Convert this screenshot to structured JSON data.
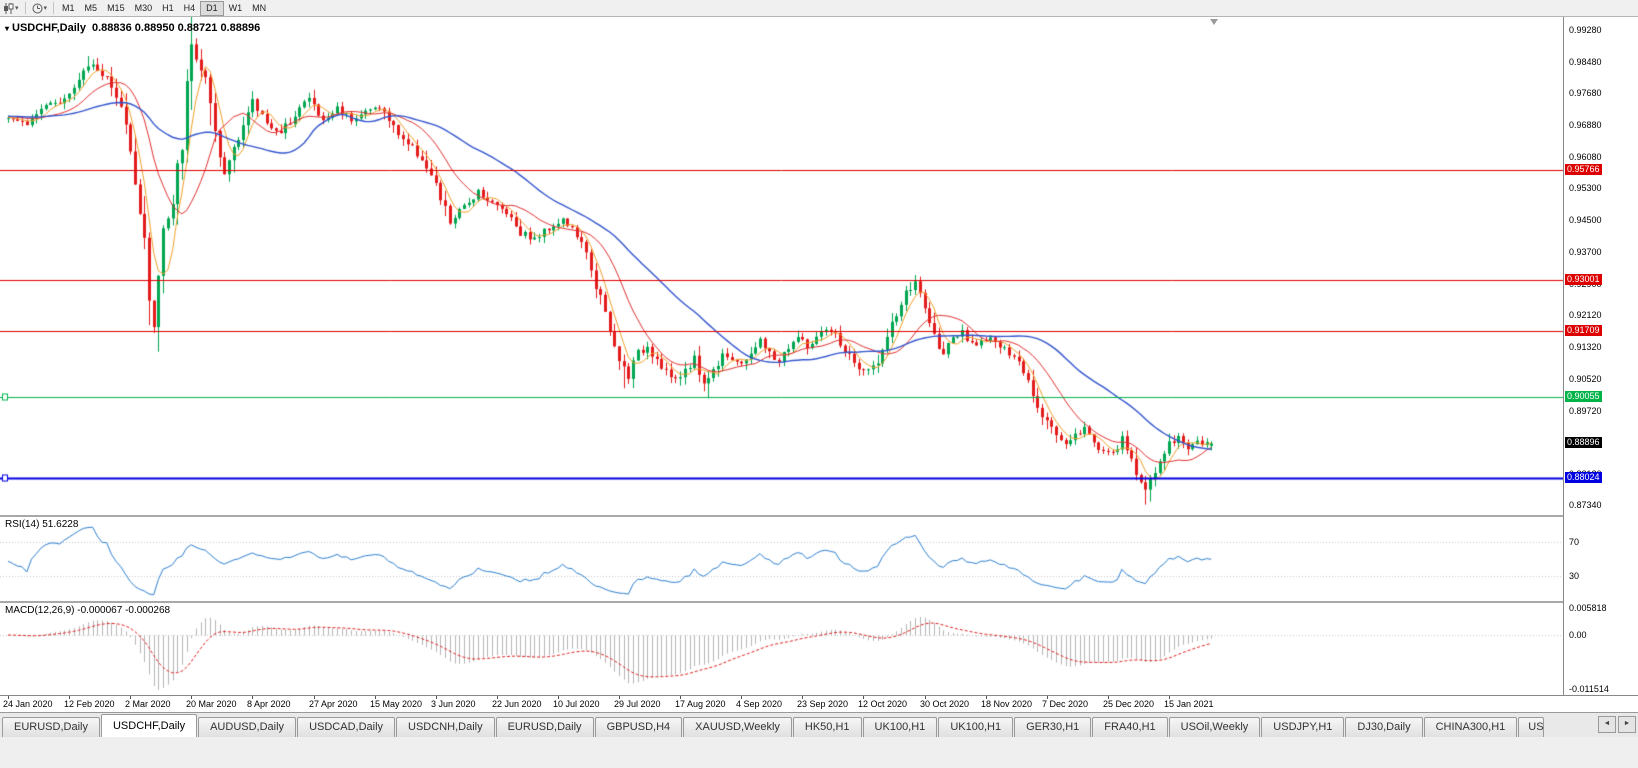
{
  "toolbar": {
    "timeframes": [
      "M1",
      "M5",
      "M15",
      "M30",
      "H1",
      "H4",
      "D1",
      "W1",
      "MN"
    ],
    "active_timeframe": "D1"
  },
  "chart": {
    "symbol_title": "USDCHF,Daily",
    "ohlc_line": "0.88836 0.88950 0.88721 0.88896",
    "dropdown_glyph": "▾"
  },
  "rsi_panel": {
    "label": "RSI(14)",
    "value": "51.6228"
  },
  "macd_panel": {
    "label": "MACD(12,26,9)",
    "values": "-0.000067 -0.000268"
  },
  "chart_data": {
    "type": "candlestick",
    "title": "USDCHF,Daily",
    "symbol": "USDCHF",
    "timeframe": "Daily",
    "grid": false,
    "legend": false,
    "last_open": 0.88836,
    "last_high": 0.8895,
    "last_low": 0.88721,
    "last_close": 0.88896,
    "current_price": 0.88896,
    "bar_count": 257,
    "bars_per_tick": 13,
    "seed": 1337,
    "x_ticks": [
      "24 Jan 2020",
      "12 Feb 2020",
      "2 Mar 2020",
      "20 Mar 2020",
      "8 Apr 2020",
      "27 Apr 2020",
      "15 May 2020",
      "3 Jun 2020",
      "22 Jun 2020",
      "10 Jul 2020",
      "29 Jul 2020",
      "17 Aug 2020",
      "4 Sep 2020",
      "23 Sep 2020",
      "12 Oct 2020",
      "30 Oct 2020",
      "18 Nov 2020",
      "7 Dec 2020",
      "25 Dec 2020",
      "15 Jan 2021"
    ],
    "y_axis": {
      "max": 0.996,
      "min": 0.871,
      "ticks": [
        0.9928,
        0.9848,
        0.9768,
        0.9688,
        0.9608,
        0.953,
        0.945,
        0.937,
        0.929,
        0.9212,
        0.9132,
        0.9052,
        0.8972,
        0.8892,
        0.8812,
        0.8734
      ]
    },
    "levels": [
      {
        "value": 0.95766,
        "color": "#dd0000",
        "line_width": 1,
        "handles": false
      },
      {
        "value": 0.93001,
        "color": "#dd0000",
        "line_width": 1,
        "handles": false
      },
      {
        "value": 0.91709,
        "color": "#dd0000",
        "line_width": 1,
        "handles": false
      },
      {
        "value": 0.90055,
        "color": "#00b44a",
        "line_width": 1,
        "handles": true
      },
      {
        "value": 0.88024,
        "color": "#0000e0",
        "line_width": 2,
        "handles": true
      }
    ],
    "moving_averages": [
      {
        "period": 5,
        "color": "#f0a02a",
        "width": 1
      },
      {
        "period": 13,
        "color": "#e03030",
        "width": 1
      },
      {
        "period": 34,
        "color": "#3355cc",
        "width": 1.4
      }
    ],
    "rsi": {
      "period": 14,
      "color": "#2e7fd0",
      "levels": [
        70,
        30
      ],
      "range": [
        0,
        100
      ]
    },
    "macd": {
      "fast": 12,
      "slow": 26,
      "signal": 9,
      "hist_color": "#b4b4b4",
      "signal_color": "#e02020",
      "range": {
        "max": 0.0068,
        "min": -0.0128
      },
      "ticks": [
        {
          "v": 0.005818,
          "t": "0.005818"
        },
        {
          "v": 0,
          "t": "0.00"
        },
        {
          "v": -0.011514,
          "t": "-0.011514"
        }
      ]
    },
    "colors": {
      "up": "#00a650",
      "down": "#e31b1b"
    },
    "price_anchors": [
      [
        0,
        0.9712
      ],
      [
        4,
        0.9692
      ],
      [
        7,
        0.973
      ],
      [
        10,
        0.9742
      ],
      [
        13,
        0.9772
      ],
      [
        16,
        0.9832
      ],
      [
        18,
        0.9845
      ],
      [
        21,
        0.9806
      ],
      [
        24,
        0.9732
      ],
      [
        26,
        0.9642
      ],
      [
        28,
        0.9482
      ],
      [
        30,
        0.9272
      ],
      [
        31,
        0.9196
      ],
      [
        33,
        0.942
      ],
      [
        35,
        0.9482
      ],
      [
        37,
        0.9652
      ],
      [
        39,
        0.9878
      ],
      [
        40,
        0.9858
      ],
      [
        42,
        0.98
      ],
      [
        44,
        0.9642
      ],
      [
        46,
        0.9562
      ],
      [
        48,
        0.964
      ],
      [
        50,
        0.9692
      ],
      [
        52,
        0.9742
      ],
      [
        55,
        0.97
      ],
      [
        58,
        0.9662
      ],
      [
        61,
        0.9722
      ],
      [
        64,
        0.9756
      ],
      [
        67,
        0.9696
      ],
      [
        70,
        0.9732
      ],
      [
        73,
        0.9706
      ],
      [
        76,
        0.9722
      ],
      [
        79,
        0.9736
      ],
      [
        82,
        0.9682
      ],
      [
        85,
        0.9642
      ],
      [
        88,
        0.9606
      ],
      [
        91,
        0.9532
      ],
      [
        94,
        0.9446
      ],
      [
        97,
        0.9482
      ],
      [
        100,
        0.9526
      ],
      [
        103,
        0.9492
      ],
      [
        106,
        0.9472
      ],
      [
        109,
        0.9422
      ],
      [
        112,
        0.9402
      ],
      [
        115,
        0.9432
      ],
      [
        118,
        0.9452
      ],
      [
        121,
        0.9412
      ],
      [
        124,
        0.9332
      ],
      [
        126,
        0.9252
      ],
      [
        128,
        0.9162
      ],
      [
        130,
        0.9096
      ],
      [
        132,
        0.9062
      ],
      [
        134,
        0.9112
      ],
      [
        136,
        0.9136
      ],
      [
        138,
        0.9102
      ],
      [
        140,
        0.9072
      ],
      [
        142,
        0.9042
      ],
      [
        144,
        0.9076
      ],
      [
        146,
        0.9102
      ],
      [
        148,
        0.9042
      ],
      [
        150,
        0.9072
      ],
      [
        152,
        0.9122
      ],
      [
        154,
        0.9102
      ],
      [
        156,
        0.9082
      ],
      [
        158,
        0.9122
      ],
      [
        160,
        0.9146
      ],
      [
        162,
        0.9112
      ],
      [
        164,
        0.9096
      ],
      [
        166,
        0.9132
      ],
      [
        168,
        0.9156
      ],
      [
        170,
        0.9132
      ],
      [
        172,
        0.9152
      ],
      [
        174,
        0.9172
      ],
      [
        176,
        0.9162
      ],
      [
        178,
        0.9122
      ],
      [
        180,
        0.9092
      ],
      [
        182,
        0.9066
      ],
      [
        184,
        0.9082
      ],
      [
        186,
        0.9122
      ],
      [
        188,
        0.9182
      ],
      [
        190,
        0.9242
      ],
      [
        192,
        0.9282
      ],
      [
        193,
        0.9292
      ],
      [
        195,
        0.9232
      ],
      [
        197,
        0.9152
      ],
      [
        199,
        0.9122
      ],
      [
        201,
        0.9146
      ],
      [
        203,
        0.9166
      ],
      [
        205,
        0.9132
      ],
      [
        207,
        0.9152
      ],
      [
        209,
        0.9156
      ],
      [
        211,
        0.9132
      ],
      [
        213,
        0.9112
      ],
      [
        215,
        0.9092
      ],
      [
        217,
        0.9052
      ],
      [
        219,
        0.8992
      ],
      [
        221,
        0.8946
      ],
      [
        223,
        0.8912
      ],
      [
        225,
        0.8892
      ],
      [
        227,
        0.8912
      ],
      [
        229,
        0.8926
      ],
      [
        231,
        0.8892
      ],
      [
        233,
        0.8872
      ],
      [
        235,
        0.8862
      ],
      [
        237,
        0.8896
      ],
      [
        239,
        0.8852
      ],
      [
        241,
        0.8792
      ],
      [
        242,
        0.8762
      ],
      [
        243,
        0.8802
      ],
      [
        245,
        0.8842
      ],
      [
        247,
        0.8886
      ],
      [
        249,
        0.8906
      ],
      [
        251,
        0.8882
      ],
      [
        253,
        0.8892
      ],
      [
        255,
        0.8886
      ],
      [
        256,
        0.889
      ]
    ],
    "wick_overrides": [
      {
        "i": 17,
        "high": 0.9862
      },
      {
        "i": 31,
        "low": 0.9176
      },
      {
        "i": 39,
        "high": 0.9906
      },
      {
        "i": 131,
        "low": 0.9028
      },
      {
        "i": 149,
        "low": 0.9003
      },
      {
        "i": 193,
        "high": 0.9296
      },
      {
        "i": 242,
        "low": 0.8736
      }
    ]
  },
  "tabs": {
    "active_index": 1,
    "scroll_left": "◄",
    "scroll_right": "►",
    "items": [
      {
        "label": "EURUSD,Daily"
      },
      {
        "label": "USDCHF,Daily"
      },
      {
        "label": "AUDUSD,Daily"
      },
      {
        "label": "USDCAD,Daily"
      },
      {
        "label": "USDCNH,Daily"
      },
      {
        "label": "EURUSD,Daily"
      },
      {
        "label": "GBPUSD,H4"
      },
      {
        "label": "XAUUSD,Weekly"
      },
      {
        "label": "HK50,H1"
      },
      {
        "label": "UK100,H1"
      },
      {
        "label": "UK100,H1"
      },
      {
        "label": "GER30,H1"
      },
      {
        "label": "FRA40,H1"
      },
      {
        "label": "USOil,Weekly"
      },
      {
        "label": "USDJPY,H1"
      },
      {
        "label": "DJ30,Daily"
      },
      {
        "label": "CHINA300,H1"
      },
      {
        "label": "US",
        "clipped": true
      }
    ]
  }
}
